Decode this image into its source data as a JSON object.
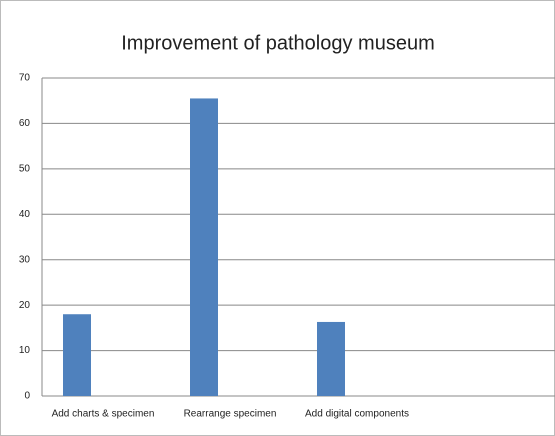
{
  "chart_data": {
    "type": "bar",
    "title": "Improvement of pathology museum",
    "categories": [
      "Add charts & specimen",
      "Rearrange specimen",
      "Add digital components"
    ],
    "values": [
      18,
      65.5,
      16.3
    ],
    "color": "#4f81bd",
    "ylim": [
      0,
      70
    ],
    "yticks": [
      0,
      10,
      20,
      30,
      40,
      50,
      60,
      70
    ],
    "grid": true
  }
}
